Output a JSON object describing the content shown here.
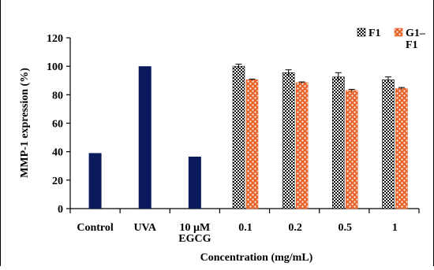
{
  "chart_data": {
    "type": "bar",
    "xlabel": "Concentration (mg/mL)",
    "ylabel": "MMP-1 expression (%)",
    "ylim": [
      0,
      120
    ],
    "yticks": [
      "0",
      "20",
      "40",
      "60",
      "80",
      "100",
      "120"
    ],
    "grid": false,
    "legend_position": "top-right",
    "controls": [
      {
        "label": [
          "Control"
        ],
        "value": 39,
        "color": "#0b1a5c"
      },
      {
        "label": [
          "UVA"
        ],
        "value": 100,
        "color": "#0b1a5c"
      },
      {
        "label": [
          "10 µM",
          "EGCG"
        ],
        "value": 36.5,
        "color": "#0b1a5c"
      }
    ],
    "categories": [
      "0.1",
      "0.2",
      "0.5",
      "1"
    ],
    "series": [
      {
        "name": "F1",
        "legend_lines": [
          "F1"
        ],
        "values": [
          100,
          95.5,
          92.5,
          90.5
        ],
        "errors": [
          1.5,
          2,
          3,
          2
        ],
        "pattern": "checker"
      },
      {
        "name": "G1–F1",
        "legend_lines": [
          "G1–",
          "F1"
        ],
        "values": [
          90.5,
          88.5,
          83,
          84.5
        ],
        "errors": [
          0.5,
          0.5,
          0.8,
          0.6
        ],
        "pattern": "orange-dots"
      }
    ]
  }
}
